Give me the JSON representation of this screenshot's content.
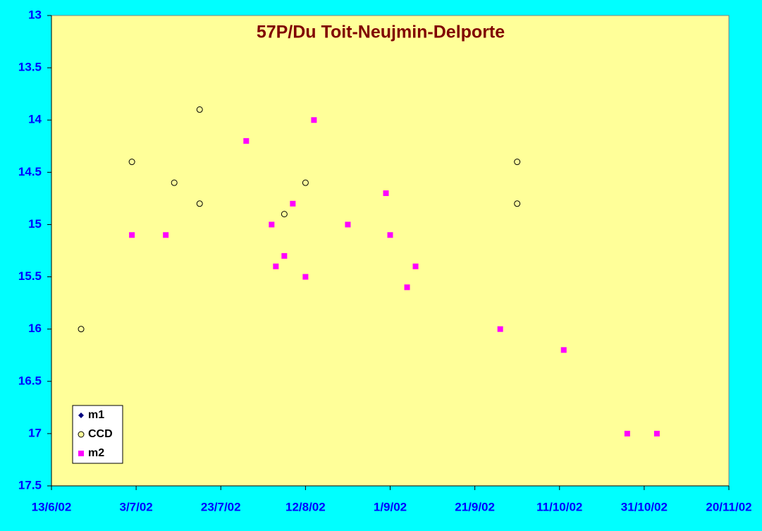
{
  "chart_data": {
    "type": "scatter",
    "title": "57P/Du Toit-Neujmin-Delporte",
    "invert_y": true,
    "legend": "lower left",
    "xlim": [
      "2002-06-13",
      "2002-11-20"
    ],
    "xticks": [
      {
        "value": "2002-06-13",
        "label": "13/6/02"
      },
      {
        "value": "2002-07-03",
        "label": "3/7/02"
      },
      {
        "value": "2002-07-23",
        "label": "23/7/02"
      },
      {
        "value": "2002-08-12",
        "label": "12/8/02"
      },
      {
        "value": "2002-09-01",
        "label": "1/9/02"
      },
      {
        "value": "2002-09-21",
        "label": "21/9/02"
      },
      {
        "value": "2002-10-11",
        "label": "11/10/02"
      },
      {
        "value": "2002-10-31",
        "label": "31/10/02"
      },
      {
        "value": "2002-11-20",
        "label": "20/11/02"
      }
    ],
    "ylim": [
      13,
      17.5
    ],
    "yticks": [
      13,
      13.5,
      14,
      14.5,
      15,
      15.5,
      16,
      16.5,
      17,
      17.5
    ],
    "series": [
      {
        "name": "m1",
        "color": "#000080",
        "marker": "diamond",
        "x": [],
        "values": []
      },
      {
        "name": "CCD",
        "color": "#000000",
        "marker": "circle",
        "x": [
          "2002-06-20",
          "2002-07-02",
          "2002-07-12",
          "2002-07-18",
          "2002-07-18",
          "2002-08-07",
          "2002-08-12",
          "2002-10-01",
          "2002-10-01"
        ],
        "values": [
          16.0,
          14.4,
          14.6,
          13.9,
          14.8,
          14.9,
          14.6,
          14.4,
          14.8
        ]
      },
      {
        "name": "m2",
        "color": "#ff00ff",
        "marker": "square",
        "x": [
          "2002-07-02",
          "2002-07-10",
          "2002-07-29",
          "2002-08-04",
          "2002-08-05",
          "2002-08-07",
          "2002-08-09",
          "2002-08-12",
          "2002-08-14",
          "2002-08-22",
          "2002-08-31",
          "2002-09-01",
          "2002-09-05",
          "2002-09-07",
          "2002-09-27",
          "2002-10-12",
          "2002-10-27",
          "2002-11-03"
        ],
        "values": [
          15.1,
          15.1,
          14.2,
          15.0,
          15.4,
          15.3,
          14.8,
          15.5,
          14.0,
          15.0,
          14.7,
          15.1,
          15.6,
          15.4,
          16.0,
          16.2,
          17.0,
          17.0
        ]
      }
    ]
  }
}
